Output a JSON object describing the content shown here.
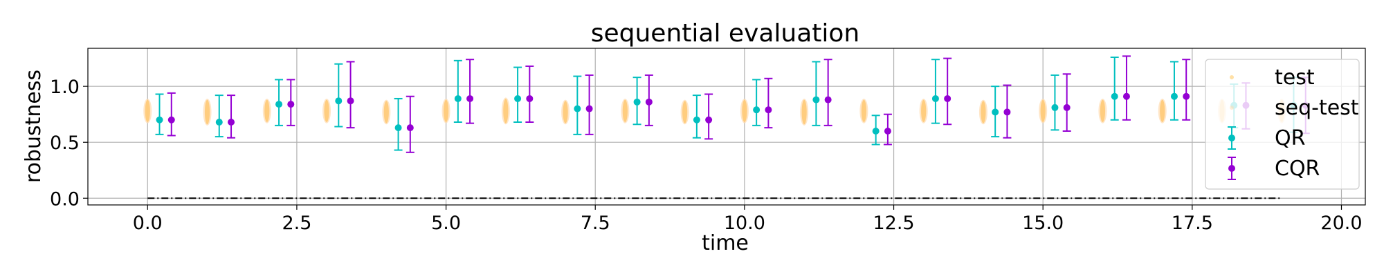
{
  "chart_data": {
    "type": "scatter",
    "title": "sequential evaluation",
    "xlabel": "time",
    "ylabel": "robustness",
    "xlim": [
      -1.0,
      20.4
    ],
    "ylim": [
      -0.06,
      1.34
    ],
    "x_ticks": [
      0.0,
      2.5,
      5.0,
      7.5,
      10.0,
      12.5,
      15.0,
      17.5,
      20.0
    ],
    "x_tick_labels": [
      "0.0",
      "2.5",
      "5.0",
      "7.5",
      "10.0",
      "12.5",
      "15.0",
      "17.5",
      "20.0"
    ],
    "y_ticks": [
      0.0,
      0.5,
      1.0
    ],
    "y_tick_labels": [
      "0.0",
      "0.5",
      "1.0"
    ],
    "grid": true,
    "legend_position": "right",
    "threshold_line": {
      "y": 0.0,
      "x_start": 0,
      "x_end": 19,
      "style": "dash-dot",
      "color": "#000000"
    },
    "times": [
      0,
      1,
      2,
      3,
      4,
      5,
      6,
      7,
      8,
      9,
      10,
      11,
      12,
      13,
      14,
      15,
      16,
      17,
      18,
      19
    ],
    "series": [
      {
        "name": "test",
        "kind": "distribution",
        "color": "#ffa500",
        "x_offset": 0.0,
        "centers": [
          0.78,
          0.77,
          0.78,
          0.78,
          0.77,
          0.78,
          0.78,
          0.77,
          0.78,
          0.77,
          0.78,
          0.77,
          0.78,
          0.78,
          0.77,
          0.78,
          0.78,
          0.78,
          0.78,
          0.78
        ],
        "spread": [
          0.2,
          0.22,
          0.2,
          0.2,
          0.2,
          0.2,
          0.22,
          0.2,
          0.2,
          0.2,
          0.2,
          0.22,
          0.2,
          0.2,
          0.2,
          0.2,
          0.2,
          0.2,
          0.2,
          0.2
        ]
      },
      {
        "name": "seq-test",
        "kind": "distribution",
        "color": "#ffdcb0",
        "x_offset": 0.0,
        "centers": [
          0.78,
          0.77,
          0.78,
          0.78,
          0.77,
          0.78,
          0.78,
          0.77,
          0.78,
          0.77,
          0.78,
          0.77,
          0.78,
          0.78,
          0.77,
          0.78,
          0.78,
          0.78,
          0.78,
          0.78
        ],
        "spread": [
          0.22,
          0.24,
          0.22,
          0.22,
          0.22,
          0.22,
          0.24,
          0.22,
          0.22,
          0.22,
          0.22,
          0.24,
          0.22,
          0.22,
          0.22,
          0.22,
          0.22,
          0.22,
          0.22,
          0.22
        ]
      },
      {
        "name": "QR",
        "kind": "errorbar",
        "color": "#00bfbf",
        "x_offset": 0.2,
        "y": [
          0.7,
          0.68,
          0.84,
          0.87,
          0.63,
          0.89,
          0.89,
          0.8,
          0.86,
          0.7,
          0.79,
          0.88,
          0.6,
          0.89,
          0.77,
          0.81,
          0.91,
          0.91,
          0.83,
          0.83
        ],
        "lower": [
          0.57,
          0.55,
          0.65,
          0.64,
          0.43,
          0.68,
          0.68,
          0.57,
          0.66,
          0.54,
          0.65,
          0.65,
          0.48,
          0.67,
          0.55,
          0.61,
          0.7,
          0.7,
          0.63,
          0.59
        ],
        "upper": [
          0.93,
          0.92,
          1.06,
          1.2,
          0.89,
          1.23,
          1.17,
          1.09,
          1.08,
          0.92,
          1.06,
          1.22,
          0.74,
          1.24,
          1.0,
          1.1,
          1.26,
          1.22,
          1.02,
          1.08
        ]
      },
      {
        "name": "CQR",
        "kind": "errorbar",
        "color": "#9400d3",
        "x_offset": 0.4,
        "y": [
          0.7,
          0.68,
          0.84,
          0.87,
          0.63,
          0.89,
          0.89,
          0.8,
          0.86,
          0.7,
          0.79,
          0.88,
          0.6,
          0.89,
          0.77,
          0.81,
          0.91,
          0.91,
          0.83,
          0.83
        ],
        "lower": [
          0.56,
          0.54,
          0.65,
          0.63,
          0.41,
          0.67,
          0.68,
          0.57,
          0.65,
          0.53,
          0.63,
          0.65,
          0.48,
          0.66,
          0.54,
          0.6,
          0.7,
          0.7,
          0.62,
          0.58
        ],
        "upper": [
          0.94,
          0.92,
          1.06,
          1.22,
          0.91,
          1.24,
          1.18,
          1.1,
          1.1,
          0.93,
          1.07,
          1.24,
          0.75,
          1.25,
          1.01,
          1.11,
          1.27,
          1.24,
          1.03,
          1.08
        ]
      }
    ]
  }
}
